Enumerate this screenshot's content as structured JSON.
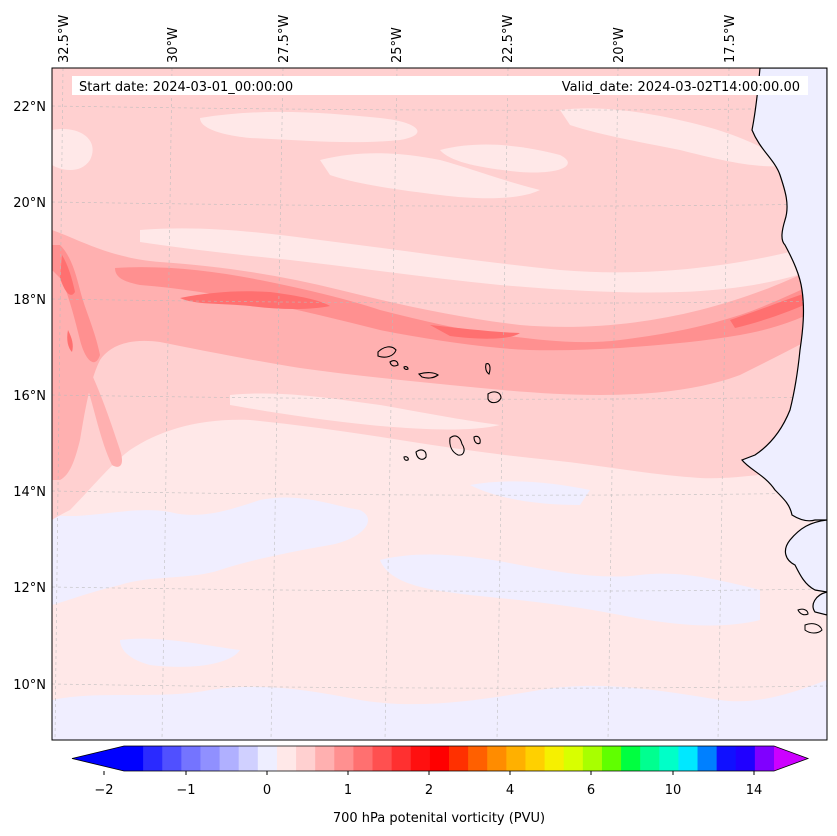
{
  "map": {
    "start_date_label": "Start date: 2024-03-01_00:00:00",
    "valid_date_label": "Valid_date: 2024-03-02T14:00:00.00",
    "lon_labels": [
      "32.5°W",
      "30°W",
      "27.5°W",
      "25°W",
      "22.5°W",
      "20°W",
      "17.5°W"
    ],
    "lat_labels": [
      "22°N",
      "20°N",
      "18°N",
      "16°N",
      "14°N",
      "12°N",
      "10°N"
    ],
    "land_color": "#eeeeff",
    "ocean_base_color": "#ffe8e8"
  },
  "colorbar": {
    "label": "700 hPa potenital vorticity (PVU)",
    "tick_labels": [
      "−2",
      "−1",
      "0",
      "1",
      "2",
      "4",
      "6",
      "10",
      "14"
    ],
    "colors": [
      "#0000ff",
      "#2a2aff",
      "#5050ff",
      "#7474ff",
      "#9090ff",
      "#b0b0ff",
      "#d0d0ff",
      "#eeeeff",
      "#ffe8e8",
      "#ffd0d0",
      "#ffb0b0",
      "#ff9090",
      "#ff7070",
      "#ff5050",
      "#ff3030",
      "#ff1010",
      "#ff0000",
      "#ff3000",
      "#ff6000",
      "#ff8c00",
      "#ffb000",
      "#ffd000",
      "#f6f000",
      "#d8ff00",
      "#a8ff00",
      "#60ff00",
      "#00ff40",
      "#00ff90",
      "#00ffc8",
      "#00e8ff",
      "#0080ff",
      "#1010ff",
      "#2000ff",
      "#8000ff"
    ],
    "extend_low_color": "#0000ff",
    "extend_high_color": "#cc00ff"
  }
}
